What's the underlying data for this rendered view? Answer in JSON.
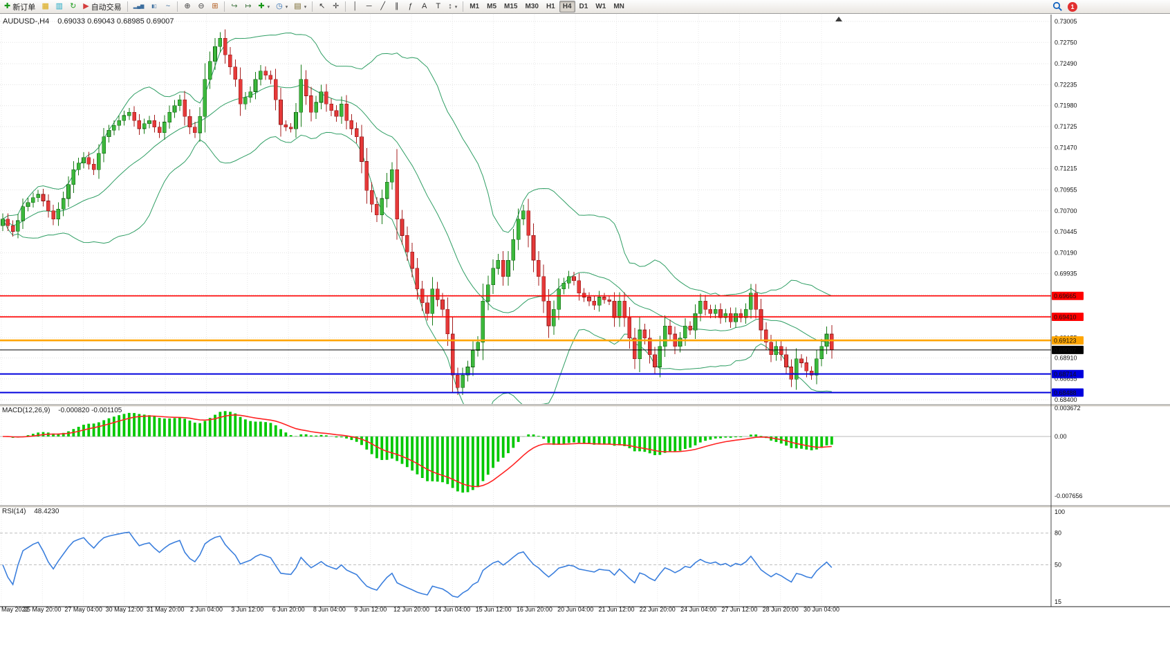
{
  "toolbar": {
    "notification_count": "1",
    "items": [
      {
        "type": "button",
        "name": "new-order-button",
        "glyph": "✚",
        "glyph_color": "#189818",
        "label": "新订单"
      },
      {
        "type": "button",
        "name": "market-watch-button",
        "glyph": "▦",
        "glyph_color": "#d9a404"
      },
      {
        "type": "button",
        "name": "data-window-button",
        "glyph": "▥",
        "glyph_color": "#1ea8c4"
      },
      {
        "type": "button",
        "name": "navigator-button",
        "glyph": "↻",
        "glyph_color": "#1f9e1f"
      },
      {
        "type": "button",
        "name": "autotrading-button",
        "glyph": "▶",
        "glyph_color": "#d43c3c",
        "label": "自动交易"
      },
      {
        "type": "sep"
      },
      {
        "type": "button",
        "name": "chart-bars-button",
        "glyph": "▂▄▆",
        "glyph_color": "#3c6e9e"
      },
      {
        "type": "button",
        "name": "chart-candles-button",
        "glyph": "▮▯",
        "glyph_color": "#3c6e9e"
      },
      {
        "type": "button",
        "name": "chart-line-button",
        "glyph": "~",
        "glyph_color": "#3c6e9e"
      },
      {
        "type": "sep"
      },
      {
        "type": "button",
        "name": "zoom-in-button",
        "glyph": "⊕",
        "glyph_color": "#444444"
      },
      {
        "type": "button",
        "name": "zoom-out-button",
        "glyph": "⊖",
        "glyph_color": "#444444"
      },
      {
        "type": "button",
        "name": "tile-windows-button",
        "glyph": "⊞",
        "glyph_color": "#b05818"
      },
      {
        "type": "sep"
      },
      {
        "type": "button",
        "name": "auto-scroll-button",
        "glyph": "↪",
        "glyph_color": "#447744"
      },
      {
        "type": "button",
        "name": "chart-shift-button",
        "glyph": "↦",
        "glyph_color": "#447744"
      },
      {
        "type": "button",
        "name": "indicators-button",
        "glyph": "✚",
        "glyph_color": "#189818",
        "dropdown": true
      },
      {
        "type": "button",
        "name": "periods-button",
        "glyph": "◷",
        "glyph_color": "#2a6ab0",
        "dropdown": true
      },
      {
        "type": "button",
        "name": "templates-button",
        "glyph": "▤",
        "glyph_color": "#7a6a30",
        "dropdown": true
      },
      {
        "type": "sep"
      },
      {
        "type": "button",
        "name": "cursor-button",
        "glyph": "↖",
        "glyph_color": "#333333"
      },
      {
        "type": "button",
        "name": "crosshair-button",
        "glyph": "✛",
        "glyph_color": "#333333"
      },
      {
        "type": "sep"
      },
      {
        "type": "button",
        "name": "vertical-line-button",
        "glyph": "│",
        "glyph_color": "#333333"
      },
      {
        "type": "button",
        "name": "horizontal-line-button",
        "glyph": "─",
        "glyph_color": "#333333"
      },
      {
        "type": "button",
        "name": "trendline-button",
        "glyph": "╱",
        "glyph_color": "#333333"
      },
      {
        "type": "button",
        "name": "channel-button",
        "glyph": "∥",
        "glyph_color": "#333333"
      },
      {
        "type": "button",
        "name": "fibonacci-button",
        "glyph": "ƒ",
        "glyph_color": "#333333"
      },
      {
        "type": "button",
        "name": "text-button",
        "glyph": "A",
        "glyph_color": "#333333"
      },
      {
        "type": "button",
        "name": "text-label-button",
        "glyph": "T",
        "glyph_color": "#333333"
      },
      {
        "type": "button",
        "name": "arrows-button",
        "glyph": "↕",
        "glyph_color": "#333333",
        "dropdown": true
      },
      {
        "type": "sep"
      },
      {
        "type": "tf",
        "name": "timeframe-m1-button",
        "label": "M1"
      },
      {
        "type": "tf",
        "name": "timeframe-m5-button",
        "label": "M5"
      },
      {
        "type": "tf",
        "name": "timeframe-m15-button",
        "label": "M15"
      },
      {
        "type": "tf",
        "name": "timeframe-m30-button",
        "label": "M30"
      },
      {
        "type": "tf",
        "name": "timeframe-h1-button",
        "label": "H1"
      },
      {
        "type": "tf",
        "name": "timeframe-h4-button",
        "label": "H4",
        "active": true
      },
      {
        "type": "tf",
        "name": "timeframe-d1-button",
        "label": "D1"
      },
      {
        "type": "tf",
        "name": "timeframe-w1-button",
        "label": "W1"
      },
      {
        "type": "tf",
        "name": "timeframe-mn-button",
        "label": "MN"
      }
    ]
  },
  "chart": {
    "symbol_title": "AUDUSD-,H4",
    "ohlc_text": "0.69033 0.69043 0.68985 0.69007",
    "price_axis_labels": [
      "0.73005",
      "0.72750",
      "0.72490",
      "0.72235",
      "0.71980",
      "0.71725",
      "0.71470",
      "0.71215",
      "0.70955",
      "0.70700",
      "0.70445",
      "0.70190",
      "0.69935",
      "0.69680",
      "0.69425",
      "0.69155",
      "0.68910",
      "0.68655",
      "0.68400"
    ],
    "time_axis_labels": [
      "May 2022",
      "25 May 20:00",
      "27 May 04:00",
      "30 May 12:00",
      "31 May 20:00",
      "2 Jun 04:00",
      "3 Jun 12:00",
      "6 Jun 20:00",
      "8 Jun 04:00",
      "9 Jun 12:00",
      "12 Jun 20:00",
      "14 Jun 04:00",
      "15 Jun 12:00",
      "16 Jun 20:00",
      "20 Jun 04:00",
      "21 Jun 12:00",
      "22 Jun 20:00",
      "24 Jun 04:00",
      "27 Jun 12:00",
      "28 Jun 20:00",
      "30 Jun 04:00"
    ]
  },
  "macd": {
    "label": "MACD(12,26,9)",
    "values_text": "-0.000820 -0.001105",
    "axis_labels": [
      "0.003672",
      "0.00",
      "-0.007656"
    ]
  },
  "rsi": {
    "label": "RSI(14)",
    "value_text": "48.4230",
    "axis_labels": [
      "100",
      "80",
      "50",
      "15"
    ]
  },
  "chart_data": [
    {
      "type": "candlestick",
      "name": "AUDUSD H4",
      "ylim": [
        0.684,
        0.73005
      ],
      "last_bar": {
        "open": 0.69033,
        "high": 0.69043,
        "low": 0.68985,
        "close": 0.69007
      },
      "up_color": "#3cb83c",
      "down_color": "#e53939",
      "overlays": [
        {
          "name": "Bollinger Bands",
          "period": 20,
          "deviation": 2,
          "color": "#2f9e64"
        }
      ],
      "levels": [
        {
          "price": 0.69665,
          "color": "#ff0000",
          "label": "0.69665",
          "text_color": "#ffffff",
          "width": 1.6
        },
        {
          "price": 0.6941,
          "color": "#ff0000",
          "label": "0.69410",
          "text_color": "#ffffff",
          "width": 1.6
        },
        {
          "price": 0.69123,
          "color": "#ffa500",
          "label": "0.69123",
          "text_color": "#000000",
          "width": 2.6
        },
        {
          "price": 0.69007,
          "color": "#000000",
          "label": "0.69007",
          "text_color": "#ffffff",
          "width": 1.1
        },
        {
          "price": 0.68714,
          "color": "#0000dd",
          "label": "0.68714",
          "text_color": "#ffffff",
          "width": 2.0
        },
        {
          "price": 0.68488,
          "color": "#0000dd",
          "label": "0.68488",
          "text_color": "#ffffff",
          "width": 2.0
        }
      ],
      "closes": [
        0.706,
        0.7052,
        0.7045,
        0.7058,
        0.7075,
        0.708,
        0.7086,
        0.709,
        0.7082,
        0.707,
        0.706,
        0.7072,
        0.7085,
        0.7102,
        0.712,
        0.7128,
        0.7135,
        0.7127,
        0.712,
        0.714,
        0.716,
        0.7168,
        0.7174,
        0.718,
        0.7186,
        0.719,
        0.718,
        0.717,
        0.7176,
        0.718,
        0.7172,
        0.7165,
        0.7178,
        0.719,
        0.7198,
        0.7205,
        0.7185,
        0.7172,
        0.7165,
        0.7185,
        0.723,
        0.7252,
        0.727,
        0.728,
        0.726,
        0.7245,
        0.723,
        0.72,
        0.7208,
        0.7215,
        0.723,
        0.724,
        0.7235,
        0.723,
        0.7205,
        0.7175,
        0.7172,
        0.717,
        0.719,
        0.723,
        0.721,
        0.719,
        0.7202,
        0.7215,
        0.72,
        0.7192,
        0.7185,
        0.72,
        0.718,
        0.717,
        0.716,
        0.713,
        0.7095,
        0.7078,
        0.7065,
        0.7085,
        0.7105,
        0.712,
        0.706,
        0.704,
        0.702,
        0.7,
        0.6975,
        0.6958,
        0.6945,
        0.6975,
        0.6962,
        0.695,
        0.692,
        0.687,
        0.6855,
        0.687,
        0.688,
        0.69,
        0.691,
        0.696,
        0.698,
        0.7,
        0.701,
        0.699,
        0.701,
        0.7035,
        0.706,
        0.707,
        0.704,
        0.701,
        0.699,
        0.696,
        0.693,
        0.695,
        0.6975,
        0.6982,
        0.699,
        0.6985,
        0.697,
        0.6965,
        0.696,
        0.6955,
        0.6965,
        0.6962,
        0.696,
        0.694,
        0.696,
        0.694,
        0.6915,
        0.689,
        0.6925,
        0.6915,
        0.6895,
        0.688,
        0.6905,
        0.693,
        0.692,
        0.6905,
        0.6915,
        0.693,
        0.6925,
        0.6945,
        0.696,
        0.695,
        0.6945,
        0.695,
        0.694,
        0.6945,
        0.6935,
        0.6945,
        0.694,
        0.695,
        0.697,
        0.695,
        0.6925,
        0.691,
        0.6895,
        0.6905,
        0.6895,
        0.688,
        0.6865,
        0.689,
        0.6885,
        0.6875,
        0.687,
        0.689,
        0.6905,
        0.692,
        0.69007
      ]
    },
    {
      "type": "bar",
      "name": "MACD(12,26,9)",
      "derived": "EMA12(close)-EMA26(close); signal=EMA9(macd)",
      "current_values": [
        -0.00082,
        -0.001105
      ],
      "ylim": [
        -0.007656,
        0.003672
      ],
      "histogram_color": "#00c800",
      "signal_color": "#ff2222"
    },
    {
      "type": "line",
      "name": "RSI(14)",
      "current_value": 48.423,
      "ylim": [
        15,
        100
      ],
      "grid_levels": [
        80,
        50
      ],
      "color": "#3b7fdd"
    }
  ]
}
